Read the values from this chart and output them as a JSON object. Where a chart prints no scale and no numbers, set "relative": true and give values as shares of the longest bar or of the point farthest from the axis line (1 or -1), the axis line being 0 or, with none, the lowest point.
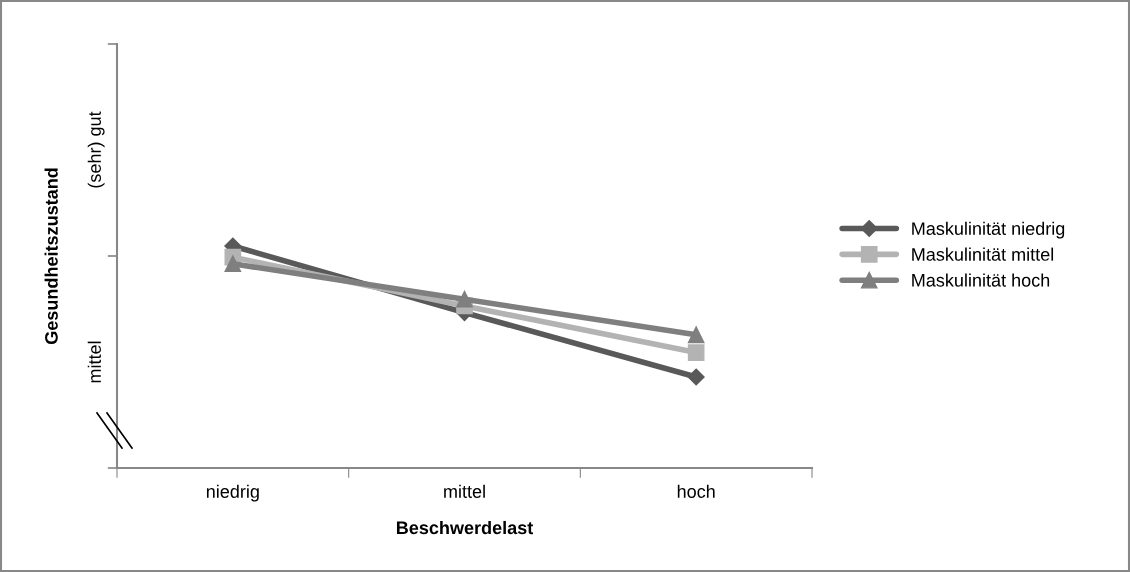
{
  "chart_data": {
    "type": "line",
    "xlabel": "Beschwerdelast",
    "ylabel": "Gesundheitszustand",
    "categories": [
      "niedrig",
      "mittel",
      "hoch"
    ],
    "relative": true,
    "series": [
      {
        "name": "Maskulinität niedrig",
        "color": "#595959",
        "marker": "diamond",
        "values": [
          1,
          0.7,
          0.41
        ]
      },
      {
        "name": "Maskulinität mittel",
        "color": "#b3b3b3",
        "marker": "square",
        "values": [
          0.95,
          0.73,
          0.52
        ]
      },
      {
        "name": "Maskulinität hoch",
        "color": "#7f7f7f",
        "marker": "triangle",
        "values": [
          0.92,
          0.76,
          0.6
        ]
      }
    ],
    "annotations": [
      "mittel",
      "(sehr) gut"
    ],
    "grid": false,
    "legend": "right",
    "line_style": "solid"
  }
}
